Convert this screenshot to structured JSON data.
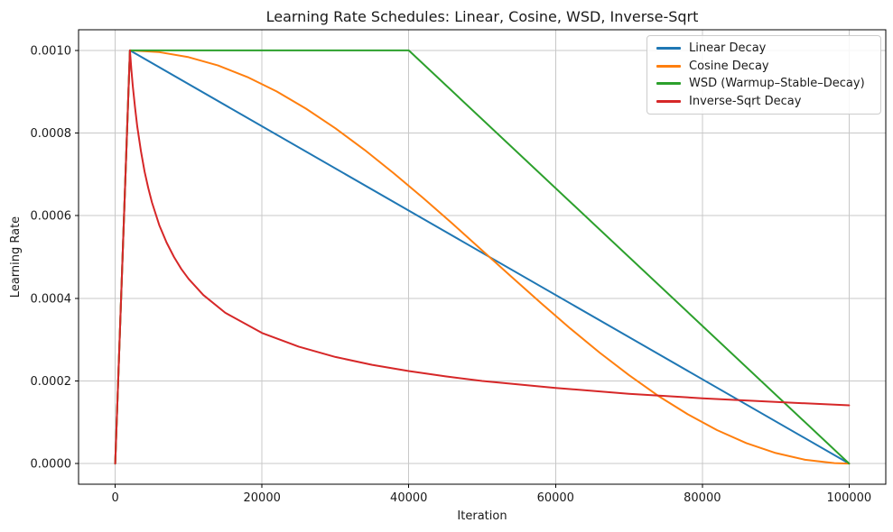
{
  "chart_data": {
    "type": "line",
    "title": "Learning Rate Schedules: Linear, Cosine, WSD, Inverse-Sqrt",
    "xlabel": "Iteration",
    "ylabel": "Learning Rate",
    "xlim": [
      -5000,
      105000
    ],
    "ylim": [
      -5e-05,
      0.00105
    ],
    "grid": true,
    "legend_position": "upper right",
    "x_ticks": [
      0,
      20000,
      40000,
      60000,
      80000,
      100000
    ],
    "x_tick_labels": [
      "0",
      "20000",
      "40000",
      "60000",
      "80000",
      "100000"
    ],
    "y_ticks": [
      0,
      0.0002,
      0.0004,
      0.0006,
      0.0008,
      0.001
    ],
    "y_tick_labels": [
      "0.0000",
      "0.0002",
      "0.0004",
      "0.0006",
      "0.0008",
      "0.0010"
    ],
    "colors": {
      "grid": "#c8c8c8",
      "spine": "#000000",
      "text": "#1a1a1a",
      "background": "#ffffff"
    },
    "warmup_iterations": 2000,
    "peak_learning_rate": 0.001,
    "total_iterations": 100000,
    "series": [
      {
        "name": "Linear Decay",
        "color": "#1f77b4",
        "points": [
          [
            0,
            0
          ],
          [
            2000,
            0.001
          ],
          [
            100000,
            0
          ]
        ]
      },
      {
        "name": "Cosine Decay",
        "color": "#ff7f0e",
        "points": [
          [
            0,
            0
          ],
          [
            2000,
            0.001
          ],
          [
            6000,
            0.0009959
          ],
          [
            10000,
            0.0009836
          ],
          [
            14000,
            0.0009635
          ],
          [
            18000,
            0.0009357
          ],
          [
            22000,
            0.0009007
          ],
          [
            26000,
            0.000859
          ],
          [
            30000,
            0.0008114
          ],
          [
            34000,
            0.0007588
          ],
          [
            38000,
            0.0007019
          ],
          [
            42000,
            0.000642
          ],
          [
            46000,
            0.0005799
          ],
          [
            50000,
            0.000516
          ],
          [
            54000,
            0.000452
          ],
          [
            58000,
            0.0003886
          ],
          [
            62000,
            0.0003271
          ],
          [
            66000,
            0.0002687
          ],
          [
            70000,
            0.0002144
          ],
          [
            74000,
            0.0001636
          ],
          [
            78000,
            0.0001193
          ],
          [
            82000,
            8.1e-05
          ],
          [
            86000,
            4.95e-05
          ],
          [
            90000,
            2.55e-05
          ],
          [
            94000,
            9.2e-06
          ],
          [
            98000,
            1e-06
          ],
          [
            100000,
            0
          ]
        ]
      },
      {
        "name": "WSD (Warmup–Stable–Decay)",
        "color": "#2ca02c",
        "points": [
          [
            0,
            0
          ],
          [
            2000,
            0.001
          ],
          [
            40000,
            0.001
          ],
          [
            100000,
            0
          ]
        ]
      },
      {
        "name": "Inverse-Sqrt Decay",
        "color": "#d62728",
        "points": [
          [
            0,
            0
          ],
          [
            2000,
            0.001
          ],
          [
            2200,
            0.000953
          ],
          [
            2400,
            0.000913
          ],
          [
            2700,
            0.000861
          ],
          [
            3000,
            0.000816
          ],
          [
            3500,
            0.000756
          ],
          [
            4000,
            0.000707
          ],
          [
            4500,
            0.000667
          ],
          [
            5000,
            0.000632
          ],
          [
            6000,
            0.000577
          ],
          [
            7000,
            0.000535
          ],
          [
            8000,
            0.0005
          ],
          [
            9000,
            0.000471
          ],
          [
            10000,
            0.000447
          ],
          [
            12000,
            0.000408
          ],
          [
            15000,
            0.000365
          ],
          [
            20000,
            0.000316
          ],
          [
            25000,
            0.000283
          ],
          [
            30000,
            0.000258
          ],
          [
            35000,
            0.000239
          ],
          [
            40000,
            0.000224
          ],
          [
            45000,
            0.000211
          ],
          [
            50000,
            0.0002
          ],
          [
            60000,
            0.000183
          ],
          [
            70000,
            0.000169
          ],
          [
            80000,
            0.000158
          ],
          [
            90000,
            0.000149
          ],
          [
            100000,
            0.000141
          ]
        ]
      }
    ]
  }
}
